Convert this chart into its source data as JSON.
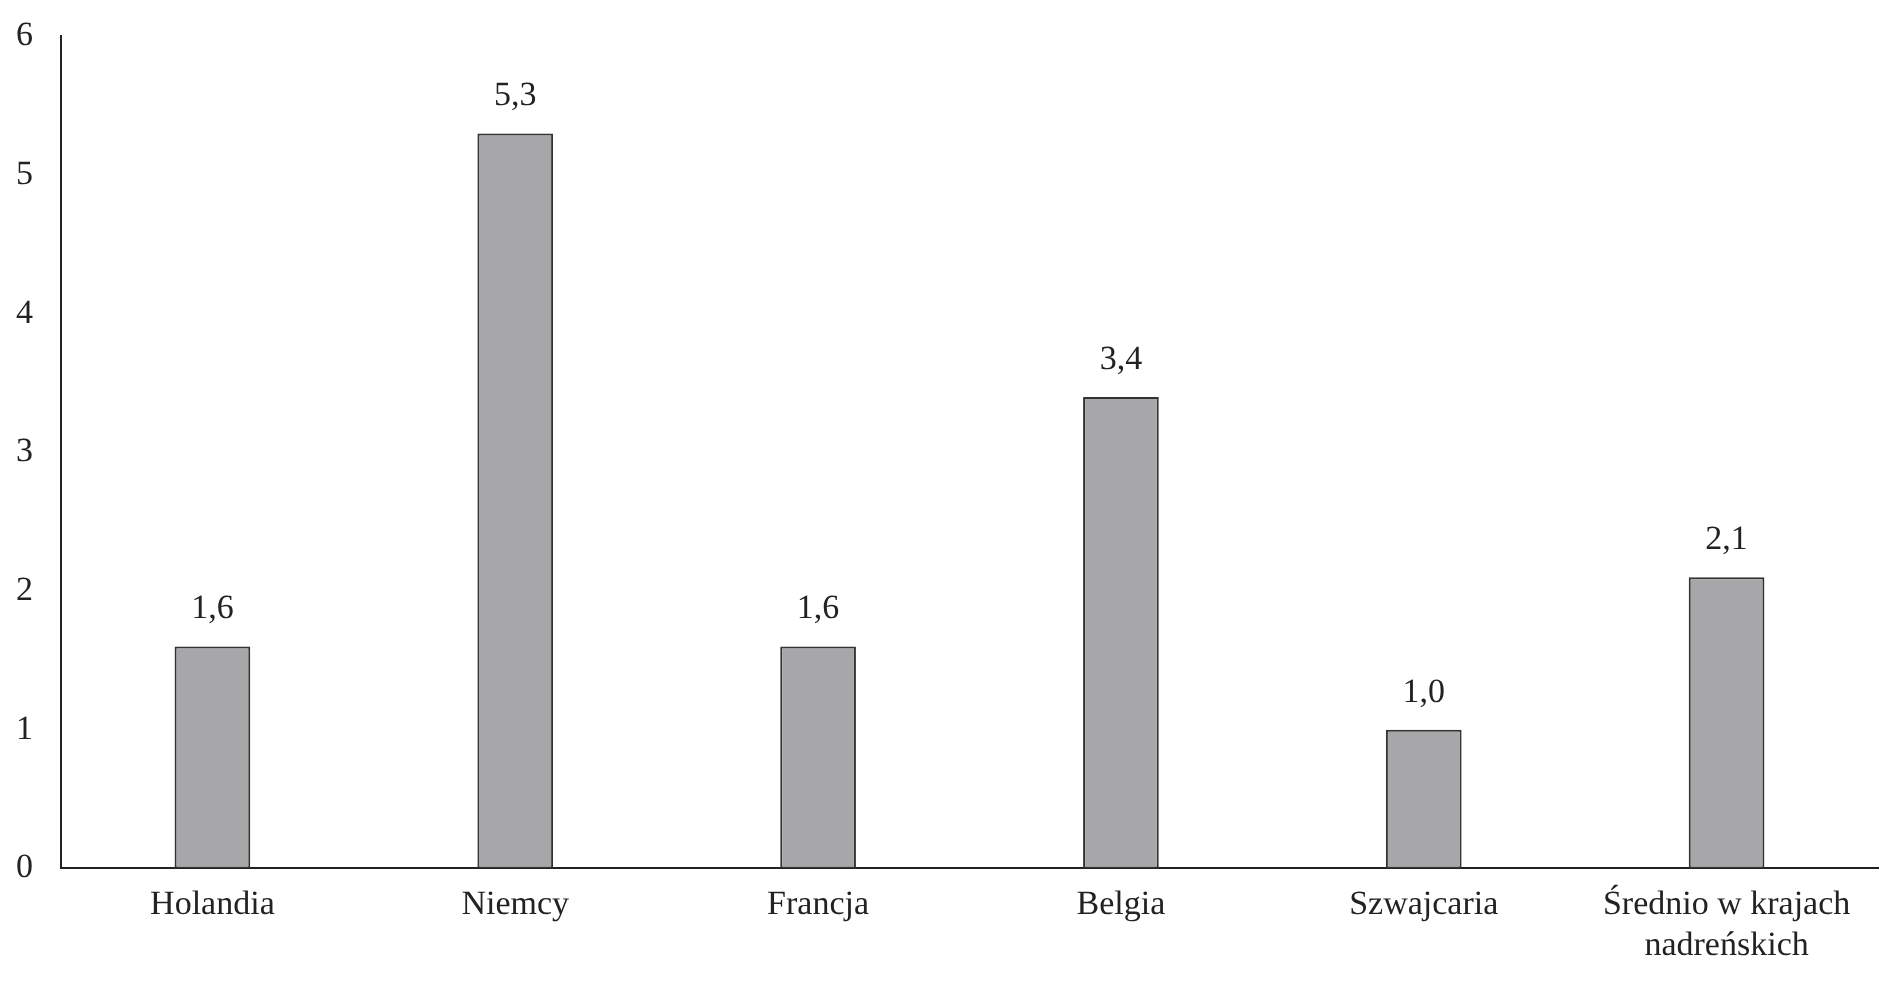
{
  "chart_data": {
    "type": "bar",
    "categories": [
      "Holandia",
      "Niemcy",
      "Francja",
      "Belgia",
      "Szwajcaria",
      "Średnio w krajach nadreńskich"
    ],
    "values": [
      1.6,
      5.3,
      1.6,
      3.4,
      1.0,
      2.1
    ],
    "value_labels": [
      "1,6",
      "5,3",
      "1,6",
      "3,4",
      "1,0",
      "2,1"
    ],
    "color": "#a7a7aa",
    "ylim": [
      0,
      6
    ],
    "yticks": [
      0,
      1,
      2,
      3,
      4,
      5,
      6
    ],
    "grid": false,
    "legend": false
  }
}
